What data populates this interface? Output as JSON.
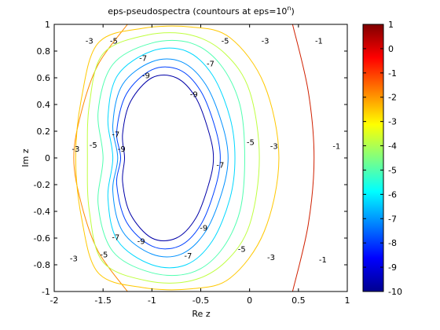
{
  "chart_data": [
    {
      "type": "contour",
      "title": "eps-pseudospectra (countours at eps=10",
      "title_superscript": "n",
      "title_suffix": ")",
      "xlabel": "Re z",
      "ylabel": "Im z",
      "xlim": [
        -2,
        1
      ],
      "ylim": [
        -1,
        1
      ],
      "xticks": [
        "-2",
        "-1.5",
        "-1",
        "-0.5",
        "0",
        "0.5",
        "1"
      ],
      "yticks": [
        "1",
        "0.8",
        "0.6",
        "0.4",
        "0.2",
        "0",
        "-0.2",
        "-0.4",
        "-0.6",
        "-0.8",
        "-1"
      ],
      "grid": false,
      "levels": [
        {
          "n": -1,
          "color": "#d02000",
          "contour": [
            [
              0.44,
              1.0
            ],
            [
              0.6,
              0.5
            ],
            [
              0.66,
              0.0
            ],
            [
              0.6,
              -0.5
            ],
            [
              0.44,
              -1.0
            ]
          ]
        },
        {
          "n": -2,
          "color": "#ff8a00",
          "contour": [
            [
              -1.25,
              1.0
            ],
            [
              -1.55,
              0.7
            ],
            [
              -1.72,
              0.35
            ],
            [
              -1.8,
              0.0
            ],
            [
              -1.72,
              -0.35
            ],
            [
              -1.55,
              -0.7
            ],
            [
              -1.25,
              -1.0
            ]
          ]
        },
        {
          "n": -3,
          "color": "#ffc800",
          "contour": [
            [
              -1.55,
              0.86
            ],
            [
              -1.1,
              0.97
            ],
            [
              -0.6,
              0.98
            ],
            [
              -0.2,
              0.9
            ],
            [
              0.15,
              0.55
            ],
            [
              0.3,
              0.0
            ],
            [
              0.15,
              -0.55
            ],
            [
              -0.2,
              -0.9
            ],
            [
              -0.6,
              -0.98
            ],
            [
              -1.1,
              -0.97
            ],
            [
              -1.55,
              -0.86
            ],
            [
              -1.72,
              -0.45
            ],
            [
              -1.78,
              0.0
            ],
            [
              -1.72,
              0.45
            ],
            [
              -1.55,
              0.86
            ]
          ]
        },
        {
          "n": -4,
          "color": "#bfff40",
          "contour": [
            [
              -1.5,
              0.78
            ],
            [
              -1.05,
              0.92
            ],
            [
              -0.6,
              0.92
            ],
            [
              -0.25,
              0.78
            ],
            [
              0.0,
              0.5
            ],
            [
              0.1,
              0.0
            ],
            [
              0.0,
              -0.5
            ],
            [
              -0.25,
              -0.78
            ],
            [
              -0.6,
              -0.92
            ],
            [
              -1.05,
              -0.92
            ],
            [
              -1.5,
              -0.78
            ],
            [
              -1.64,
              -0.4
            ],
            [
              -1.66,
              0.0
            ],
            [
              -1.64,
              0.4
            ],
            [
              -1.5,
              0.78
            ]
          ]
        },
        {
          "n": -5,
          "color": "#50ffb0",
          "contour": [
            [
              -1.4,
              0.7
            ],
            [
              -1.0,
              0.86
            ],
            [
              -0.6,
              0.86
            ],
            [
              -0.3,
              0.7
            ],
            [
              -0.1,
              0.4
            ],
            [
              -0.05,
              0.0
            ],
            [
              -0.1,
              -0.4
            ],
            [
              -0.3,
              -0.7
            ],
            [
              -0.6,
              -0.86
            ],
            [
              -1.0,
              -0.86
            ],
            [
              -1.4,
              -0.7
            ],
            [
              -1.55,
              -0.35
            ],
            [
              -1.5,
              0.0
            ],
            [
              -1.55,
              0.35
            ],
            [
              -1.4,
              0.7
            ]
          ]
        },
        {
          "n": -6,
          "color": "#00d8ff",
          "contour": [
            [
              -1.35,
              0.62
            ],
            [
              -1.0,
              0.8
            ],
            [
              -0.65,
              0.8
            ],
            [
              -0.38,
              0.62
            ],
            [
              -0.2,
              0.3
            ],
            [
              -0.15,
              0.0
            ],
            [
              -0.2,
              -0.3
            ],
            [
              -0.38,
              -0.62
            ],
            [
              -0.65,
              -0.8
            ],
            [
              -1.0,
              -0.8
            ],
            [
              -1.35,
              -0.62
            ],
            [
              -1.45,
              -0.3
            ],
            [
              -1.4,
              0.0
            ],
            [
              -1.45,
              0.3
            ],
            [
              -1.35,
              0.62
            ]
          ]
        },
        {
          "n": -7,
          "color": "#0090ff",
          "contour": [
            [
              -1.3,
              0.55
            ],
            [
              -1.0,
              0.72
            ],
            [
              -0.7,
              0.72
            ],
            [
              -0.45,
              0.55
            ],
            [
              -0.28,
              0.25
            ],
            [
              -0.22,
              0.0
            ],
            [
              -0.28,
              -0.25
            ],
            [
              -0.45,
              -0.55
            ],
            [
              -0.7,
              -0.72
            ],
            [
              -1.0,
              -0.72
            ],
            [
              -1.3,
              -0.55
            ],
            [
              -1.4,
              -0.25
            ],
            [
              -1.35,
              0.0
            ],
            [
              -1.4,
              0.25
            ],
            [
              -1.3,
              0.55
            ]
          ]
        },
        {
          "n": -8,
          "color": "#0040ff",
          "contour": [
            [
              -1.26,
              0.48
            ],
            [
              -1.0,
              0.66
            ],
            [
              -0.72,
              0.66
            ],
            [
              -0.5,
              0.5
            ],
            [
              -0.35,
              0.22
            ],
            [
              -0.3,
              0.0
            ],
            [
              -0.35,
              -0.22
            ],
            [
              -0.5,
              -0.5
            ],
            [
              -0.72,
              -0.66
            ],
            [
              -1.0,
              -0.66
            ],
            [
              -1.26,
              -0.48
            ],
            [
              -1.36,
              -0.2
            ],
            [
              -1.32,
              0.0
            ],
            [
              -1.36,
              0.2
            ],
            [
              -1.26,
              0.48
            ]
          ]
        },
        {
          "n": -9,
          "color": "#0000a8",
          "contour": [
            [
              -1.22,
              0.42
            ],
            [
              -1.0,
              0.6
            ],
            [
              -0.75,
              0.6
            ],
            [
              -0.55,
              0.45
            ],
            [
              -0.42,
              0.2
            ],
            [
              -0.37,
              0.0
            ],
            [
              -0.42,
              -0.2
            ],
            [
              -0.55,
              -0.45
            ],
            [
              -0.75,
              -0.6
            ],
            [
              -1.0,
              -0.6
            ],
            [
              -1.22,
              -0.42
            ],
            [
              -1.3,
              -0.18
            ],
            [
              -1.28,
              0.0
            ],
            [
              -1.3,
              0.18
            ],
            [
              -1.22,
              0.42
            ]
          ]
        }
      ],
      "contour_labels": [
        {
          "text": "-3",
          "x": -1.64,
          "y": 0.88
        },
        {
          "text": "-5",
          "x": -1.39,
          "y": 0.88
        },
        {
          "text": "-5",
          "x": -0.25,
          "y": 0.88
        },
        {
          "text": "-3",
          "x": 0.16,
          "y": 0.88
        },
        {
          "text": "-1",
          "x": 0.71,
          "y": 0.88
        },
        {
          "text": "-7",
          "x": -1.09,
          "y": 0.75
        },
        {
          "text": "-7",
          "x": -0.4,
          "y": 0.71
        },
        {
          "text": "-9",
          "x": -1.06,
          "y": 0.62
        },
        {
          "text": "-9",
          "x": -0.57,
          "y": 0.48
        },
        {
          "text": "-3",
          "x": -1.78,
          "y": 0.07
        },
        {
          "text": "-5",
          "x": -1.6,
          "y": 0.1
        },
        {
          "text": "-7",
          "x": -1.37,
          "y": 0.18
        },
        {
          "text": "-9",
          "x": -1.31,
          "y": 0.07
        },
        {
          "text": "-5",
          "x": 0.01,
          "y": 0.12
        },
        {
          "text": "-3",
          "x": 0.25,
          "y": 0.09
        },
        {
          "text": "-1",
          "x": 0.89,
          "y": 0.09
        },
        {
          "text": "-7",
          "x": -0.3,
          "y": -0.05
        },
        {
          "text": "-9",
          "x": -0.47,
          "y": -0.52
        },
        {
          "text": "-7",
          "x": -1.37,
          "y": -0.59
        },
        {
          "text": "-9",
          "x": -1.11,
          "y": -0.62
        },
        {
          "text": "-5",
          "x": -1.49,
          "y": -0.72
        },
        {
          "text": "-7",
          "x": -0.63,
          "y": -0.73
        },
        {
          "text": "-5",
          "x": -0.08,
          "y": -0.68
        },
        {
          "text": "-3",
          "x": -1.8,
          "y": -0.75
        },
        {
          "text": "-3",
          "x": 0.22,
          "y": -0.74
        },
        {
          "text": "-1",
          "x": 0.75,
          "y": -0.76
        }
      ],
      "colorbar": {
        "min": -10,
        "max": 1,
        "ticks": [
          "1",
          "0",
          "-1",
          "-2",
          "-3",
          "-4",
          "-5",
          "-6",
          "-7",
          "-8",
          "-9",
          "-10"
        ],
        "colormap": [
          "#00008f",
          "#0000ff",
          "#0080ff",
          "#00ffff",
          "#80ff80",
          "#ffff00",
          "#ff8000",
          "#ff0000",
          "#800000"
        ]
      }
    }
  ]
}
